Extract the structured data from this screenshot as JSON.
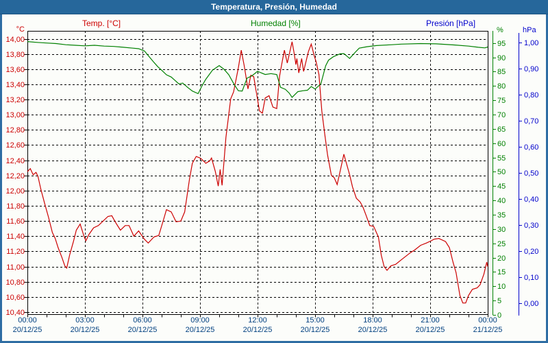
{
  "header": {
    "title": "Temperatura, Presión, Humedad"
  },
  "legend": {
    "temp": "Temp. [°C]",
    "humidity": "Humedad [%]",
    "pressure": "Presión [hPa]"
  },
  "axes": {
    "temp_unit": "°C",
    "humidity_unit": "%",
    "pressure_unit": "hPa",
    "temp_ticks": [
      "14,00",
      "13,80",
      "13,60",
      "13,40",
      "13,20",
      "13,00",
      "12,80",
      "12,60",
      "12,40",
      "12,20",
      "12,00",
      "11,80",
      "11,60",
      "11,40",
      "11,20",
      "11,00",
      "10,80",
      "10,60",
      "10,40"
    ],
    "humidity_ticks": [
      "95",
      "90",
      "85",
      "80",
      "75",
      "70",
      "65",
      "60",
      "55",
      "50",
      "45",
      "40",
      "35",
      "30",
      "25",
      "20",
      "15",
      "10",
      "5",
      "0"
    ],
    "pressure_ticks": [
      "1,00",
      "0,90",
      "0,80",
      "0,70",
      "0,60",
      "0,50",
      "0,40",
      "0,30",
      "0,20",
      "0,10",
      "0,00"
    ],
    "x_ticks": [
      {
        "time": "00:00",
        "date": "20/12/25"
      },
      {
        "time": "03:00",
        "date": "20/12/25"
      },
      {
        "time": "06:00",
        "date": "20/12/25"
      },
      {
        "time": "09:00",
        "date": "20/12/25"
      },
      {
        "time": "12:00",
        "date": "20/12/25"
      },
      {
        "time": "15:00",
        "date": "20/12/25"
      },
      {
        "time": "18:00",
        "date": "20/12/25"
      },
      {
        "time": "21:00",
        "date": "20/12/25"
      },
      {
        "time": "00:00",
        "date": "21/12/25"
      }
    ]
  },
  "colors": {
    "header_bg": "#26679B",
    "frame_border": "#2E6DA3",
    "background": "#FCFDFA",
    "grid": "#000000",
    "temp_series": "#CC0000",
    "humidity_series": "#008000",
    "pressure_series": "#0000CC",
    "x_label_text": "#004080"
  },
  "chart_data": {
    "type": "line",
    "title": "Temperatura, Presión, Humedad",
    "x_unit": "hours",
    "x_range": [
      0,
      24
    ],
    "grid": "dashed, horizontal every 0.20 °C, vertical every 3 h",
    "legend_position": "top",
    "series": [
      {
        "name": "Temp. [°C]",
        "color": "#CC0000",
        "axis": "temp",
        "axis_range": [
          10.4,
          14.0
        ],
        "points": [
          [
            0,
            12.25
          ],
          [
            0.15,
            12.29
          ],
          [
            0.3,
            12.21
          ],
          [
            0.45,
            12.24
          ],
          [
            0.55,
            12.19
          ],
          [
            0.7,
            12.02
          ],
          [
            0.9,
            11.83
          ],
          [
            1.1,
            11.65
          ],
          [
            1.3,
            11.45
          ],
          [
            1.45,
            11.37
          ],
          [
            1.6,
            11.25
          ],
          [
            1.8,
            11.12
          ],
          [
            1.95,
            11.01
          ],
          [
            2.05,
            10.98
          ],
          [
            2.2,
            11.15
          ],
          [
            2.4,
            11.33
          ],
          [
            2.55,
            11.48
          ],
          [
            2.75,
            11.56
          ],
          [
            2.95,
            11.4
          ],
          [
            3.05,
            11.34
          ],
          [
            3.2,
            11.42
          ],
          [
            3.45,
            11.51
          ],
          [
            3.7,
            11.54
          ],
          [
            3.95,
            11.6
          ],
          [
            4.2,
            11.66
          ],
          [
            4.4,
            11.67
          ],
          [
            4.6,
            11.58
          ],
          [
            4.85,
            11.48
          ],
          [
            5.1,
            11.54
          ],
          [
            5.3,
            11.54
          ],
          [
            5.55,
            11.4
          ],
          [
            5.8,
            11.47
          ],
          [
            6.1,
            11.36
          ],
          [
            6.3,
            11.31
          ],
          [
            6.6,
            11.39
          ],
          [
            6.85,
            11.41
          ],
          [
            7.1,
            11.62
          ],
          [
            7.25,
            11.75
          ],
          [
            7.5,
            11.72
          ],
          [
            7.75,
            11.59
          ],
          [
            8.0,
            11.6
          ],
          [
            8.2,
            11.72
          ],
          [
            8.45,
            12.15
          ],
          [
            8.6,
            12.36
          ],
          [
            8.8,
            12.45
          ],
          [
            9.0,
            12.43
          ],
          [
            9.1,
            12.41
          ],
          [
            9.3,
            12.36
          ],
          [
            9.5,
            12.39
          ],
          [
            9.6,
            12.43
          ],
          [
            9.8,
            12.25
          ],
          [
            9.95,
            12.06
          ],
          [
            10.05,
            12.28
          ],
          [
            10.15,
            12.07
          ],
          [
            10.35,
            12.7
          ],
          [
            10.6,
            13.21
          ],
          [
            10.75,
            13.3
          ],
          [
            11.0,
            13.62
          ],
          [
            11.15,
            13.85
          ],
          [
            11.3,
            13.65
          ],
          [
            11.5,
            13.34
          ],
          [
            11.65,
            13.52
          ],
          [
            11.8,
            13.5
          ],
          [
            12.0,
            13.2
          ],
          [
            12.1,
            13.05
          ],
          [
            12.25,
            13.02
          ],
          [
            12.4,
            13.22
          ],
          [
            12.6,
            13.25
          ],
          [
            12.8,
            13.1
          ],
          [
            13.0,
            13.08
          ],
          [
            13.15,
            13.51
          ],
          [
            13.3,
            13.72
          ],
          [
            13.4,
            13.85
          ],
          [
            13.55,
            13.68
          ],
          [
            13.8,
            13.96
          ],
          [
            13.9,
            13.82
          ],
          [
            14.0,
            13.66
          ],
          [
            14.05,
            13.74
          ],
          [
            14.15,
            13.55
          ],
          [
            14.3,
            13.74
          ],
          [
            14.4,
            13.57
          ],
          [
            14.65,
            13.83
          ],
          [
            14.8,
            13.93
          ],
          [
            14.95,
            13.78
          ],
          [
            15.05,
            13.7
          ],
          [
            15.2,
            13.53
          ],
          [
            15.35,
            13.05
          ],
          [
            15.5,
            12.75
          ],
          [
            15.65,
            12.47
          ],
          [
            15.85,
            12.2
          ],
          [
            16.0,
            12.17
          ],
          [
            16.15,
            12.08
          ],
          [
            16.3,
            12.25
          ],
          [
            16.5,
            12.48
          ],
          [
            16.8,
            12.21
          ],
          [
            16.95,
            12.05
          ],
          [
            17.15,
            11.9
          ],
          [
            17.35,
            11.85
          ],
          [
            17.5,
            11.78
          ],
          [
            17.65,
            11.68
          ],
          [
            17.85,
            11.54
          ],
          [
            18.05,
            11.53
          ],
          [
            18.3,
            11.39
          ],
          [
            18.45,
            11.15
          ],
          [
            18.6,
            11.0
          ],
          [
            18.75,
            10.95
          ],
          [
            18.95,
            11.01
          ],
          [
            19.2,
            11.03
          ],
          [
            19.45,
            11.08
          ],
          [
            19.7,
            11.13
          ],
          [
            19.95,
            11.18
          ],
          [
            20.2,
            11.22
          ],
          [
            20.5,
            11.28
          ],
          [
            20.8,
            11.31
          ],
          [
            21.05,
            11.34
          ],
          [
            21.2,
            11.36
          ],
          [
            21.45,
            11.37
          ],
          [
            21.8,
            11.33
          ],
          [
            22.0,
            11.25
          ],
          [
            22.2,
            11.05
          ],
          [
            22.35,
            10.92
          ],
          [
            22.55,
            10.62
          ],
          [
            22.7,
            10.52
          ],
          [
            22.85,
            10.52
          ],
          [
            23.0,
            10.62
          ],
          [
            23.2,
            10.7
          ],
          [
            23.45,
            10.72
          ],
          [
            23.6,
            10.76
          ],
          [
            23.8,
            10.9
          ],
          [
            23.95,
            11.06
          ],
          [
            24,
            11.0
          ]
        ]
      },
      {
        "name": "Humedad [%]",
        "color": "#008000",
        "axis": "humidity",
        "axis_range": [
          0,
          95
        ],
        "points": [
          [
            0,
            95.5
          ],
          [
            0.5,
            95.2
          ],
          [
            1.0,
            95.0
          ],
          [
            1.5,
            94.8
          ],
          [
            2.0,
            94.4
          ],
          [
            2.5,
            94.2
          ],
          [
            3.0,
            94.0
          ],
          [
            3.5,
            94.2
          ],
          [
            4.0,
            93.9
          ],
          [
            4.5,
            93.8
          ],
          [
            5.0,
            93.5
          ],
          [
            5.5,
            93.2
          ],
          [
            5.8,
            93.0
          ],
          [
            6.1,
            92.2
          ],
          [
            6.3,
            90.6
          ],
          [
            6.55,
            88.6
          ],
          [
            6.8,
            86.7
          ],
          [
            7.0,
            85.5
          ],
          [
            7.25,
            83.9
          ],
          [
            7.5,
            83.1
          ],
          [
            7.7,
            81.9
          ],
          [
            7.9,
            80.7
          ],
          [
            8.1,
            81.0
          ],
          [
            8.35,
            79.5
          ],
          [
            8.6,
            78.2
          ],
          [
            8.9,
            77.3
          ],
          [
            9.1,
            80.0
          ],
          [
            9.3,
            82.3
          ],
          [
            9.65,
            85.5
          ],
          [
            10.0,
            87.1
          ],
          [
            10.25,
            85.8
          ],
          [
            10.5,
            83.9
          ],
          [
            10.8,
            80.3
          ],
          [
            11.0,
            78.3
          ],
          [
            11.2,
            78.2
          ],
          [
            11.45,
            82.7
          ],
          [
            11.7,
            83.5
          ],
          [
            12.0,
            85.1
          ],
          [
            12.4,
            84.0
          ],
          [
            12.7,
            84.3
          ],
          [
            13.0,
            84.0
          ],
          [
            13.2,
            79.5
          ],
          [
            13.45,
            78.8
          ],
          [
            13.65,
            77.5
          ],
          [
            13.8,
            76.0
          ],
          [
            14.1,
            78.0
          ],
          [
            14.35,
            78.3
          ],
          [
            14.6,
            78.5
          ],
          [
            14.8,
            79.8
          ],
          [
            15.0,
            78.9
          ],
          [
            15.3,
            80.7
          ],
          [
            15.55,
            87.0
          ],
          [
            15.7,
            89.0
          ],
          [
            15.95,
            90.2
          ],
          [
            16.3,
            91.2
          ],
          [
            16.5,
            91.3
          ],
          [
            16.8,
            89.6
          ],
          [
            17.1,
            91.8
          ],
          [
            17.3,
            93.2
          ],
          [
            17.7,
            93.7
          ],
          [
            18.2,
            94.1
          ],
          [
            19.0,
            94.4
          ],
          [
            19.5,
            94.6
          ],
          [
            20.5,
            94.8
          ],
          [
            21.3,
            94.7
          ],
          [
            22.3,
            94.3
          ],
          [
            23.0,
            93.9
          ],
          [
            23.5,
            93.5
          ],
          [
            23.85,
            93.3
          ],
          [
            24,
            93.6
          ]
        ]
      },
      {
        "name": "Presión [hPa]",
        "color": "#0000CC",
        "axis": "pressure",
        "axis_range": [
          0.0,
          1.0
        ],
        "points": []
      }
    ]
  }
}
